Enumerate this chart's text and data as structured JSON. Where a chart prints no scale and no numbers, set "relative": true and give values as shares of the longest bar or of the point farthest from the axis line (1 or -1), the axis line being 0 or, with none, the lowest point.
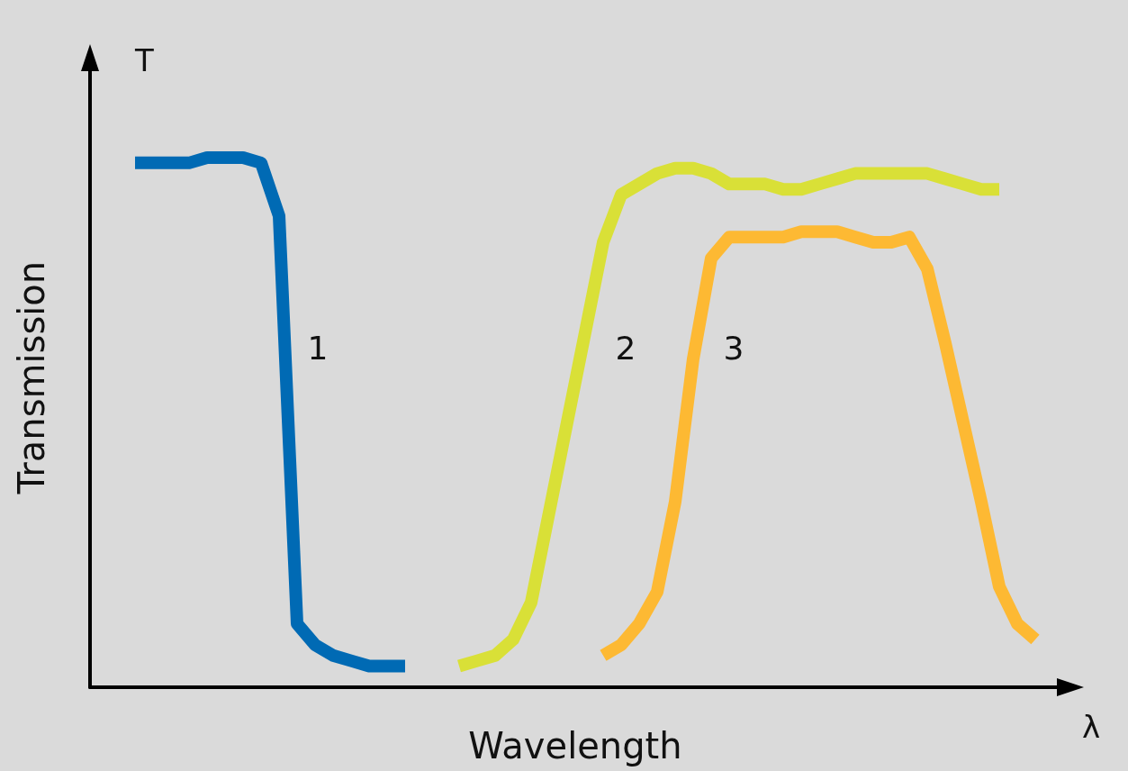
{
  "chart_data": {
    "type": "line",
    "relative": true,
    "xlabel": "Wavelength",
    "ylabel": "Transmission",
    "annotations": [
      "T",
      "λ"
    ],
    "legend": false,
    "grid": false,
    "marker": "none",
    "line_style": "solid",
    "categories": [
      null,
      null,
      null,
      null,
      null,
      null,
      null,
      null,
      null,
      null,
      null,
      null,
      null,
      null,
      null,
      null,
      null,
      null,
      null,
      null,
      null,
      null,
      null,
      null,
      null,
      null,
      null,
      null,
      null,
      null,
      null,
      null,
      null,
      null,
      null,
      null,
      null,
      null,
      null,
      null,
      null,
      null,
      null,
      null,
      null,
      null,
      null,
      null,
      null,
      null,
      null
    ],
    "series": [
      {
        "name": "1",
        "color": "#006ab4",
        "values": [
          0.99,
          0.99,
          0.99,
          0.99,
          1.0,
          1.0,
          1.0,
          0.99,
          0.89,
          0.12,
          0.08,
          0.06,
          0.05,
          0.04,
          0.04,
          0.04,
          null,
          null,
          null,
          null,
          null,
          null,
          null,
          null,
          null,
          null,
          null,
          null,
          null,
          null,
          null,
          null,
          null,
          null,
          null,
          null,
          null,
          null,
          null,
          null,
          null,
          null,
          null,
          null,
          null,
          null,
          null,
          null,
          null,
          null,
          null
        ]
      },
      {
        "name": "2",
        "color": "#d9e037",
        "values": [
          null,
          null,
          null,
          null,
          null,
          null,
          null,
          null,
          null,
          null,
          null,
          null,
          null,
          null,
          null,
          null,
          null,
          null,
          0.04,
          0.05,
          0.06,
          0.09,
          0.16,
          0.33,
          0.5,
          0.67,
          0.84,
          0.93,
          0.95,
          0.97,
          0.98,
          0.98,
          0.97,
          0.95,
          0.95,
          0.95,
          0.94,
          0.94,
          0.95,
          0.96,
          0.97,
          0.97,
          0.97,
          0.97,
          0.97,
          0.96,
          0.95,
          0.94,
          0.94,
          null,
          null
        ]
      },
      {
        "name": "3",
        "color": "#fdb933",
        "values": [
          null,
          null,
          null,
          null,
          null,
          null,
          null,
          null,
          null,
          null,
          null,
          null,
          null,
          null,
          null,
          null,
          null,
          null,
          null,
          null,
          null,
          null,
          null,
          null,
          null,
          null,
          0.06,
          0.08,
          0.12,
          0.18,
          0.35,
          0.62,
          0.81,
          0.85,
          0.85,
          0.85,
          0.85,
          0.86,
          0.86,
          0.86,
          0.85,
          0.84,
          0.84,
          0.85,
          0.79,
          0.65,
          0.5,
          0.35,
          0.19,
          0.12,
          0.09
        ]
      }
    ]
  }
}
